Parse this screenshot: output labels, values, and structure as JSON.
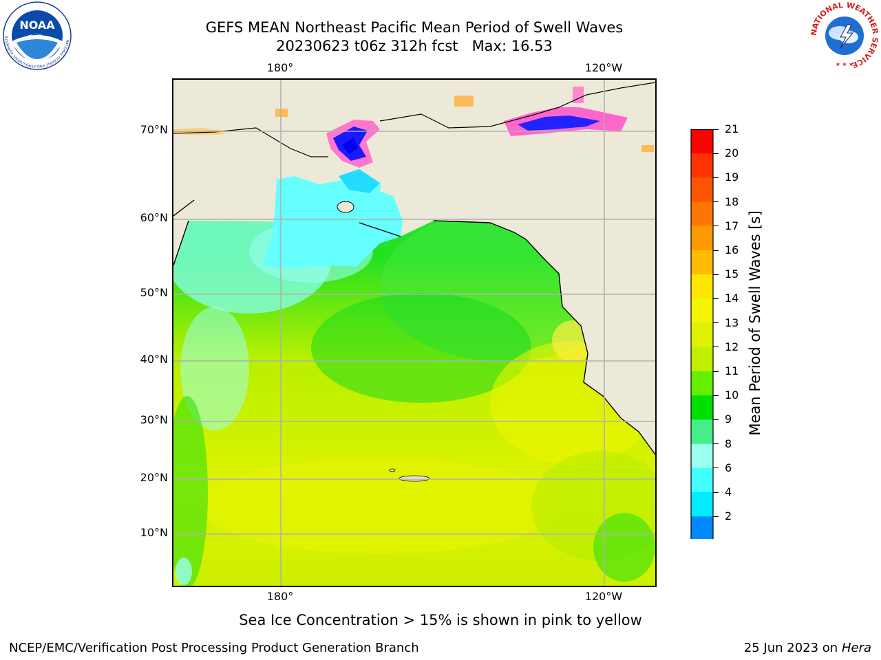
{
  "header": {
    "title_line1": "GEFS MEAN Northeast Pacific Mean Period of Swell Waves",
    "title_line2": "20230623 t06z 312h fcst   Max: 16.53"
  },
  "logos": {
    "left": {
      "icon": "noaa-logo",
      "text": "NOAA",
      "ring_text": "NATIONAL OCEANIC AND ATMOSPHERIC ADMINISTRATION · U.S. DEPARTMENT OF COMMERCE"
    },
    "right": {
      "icon": "nws-logo",
      "ring_text": "NATIONAL WEATHER SERVICE"
    }
  },
  "map": {
    "lon_labels_top": [
      "180°",
      "120°W"
    ],
    "lon_labels_bottom": [
      "180°",
      "120°W"
    ],
    "lat_labels": [
      "70°N",
      "60°N",
      "50°N",
      "40°N",
      "30°N",
      "20°N",
      "10°N"
    ],
    "colors": {
      "land": "#ede9d8",
      "gridline": "#b0b0b0",
      "coast": "#000000"
    }
  },
  "colorbar": {
    "title": "Mean Period of Swell Waves [s]",
    "labels": [
      "21",
      "20",
      "19",
      "18",
      "17",
      "16",
      "15",
      "14",
      "13",
      "12",
      "11",
      "10",
      "9",
      "8",
      "6",
      "4",
      "2"
    ],
    "colors": [
      "#ff0000",
      "#ff3300",
      "#ff5500",
      "#ff7700",
      "#ff9900",
      "#ffbb00",
      "#ffe600",
      "#f4f600",
      "#ddf200",
      "#c0f000",
      "#66ee00",
      "#00e000",
      "#44ee88",
      "#99ffee",
      "#44ffff",
      "#00ecff",
      "#0088ff",
      "#0000ff"
    ]
  },
  "footer": {
    "sea_ice_note": "Sea Ice Concentration > 15% is shown in pink to yellow",
    "credit": "NCEP/EMC/Verification Post Processing Product Generation Branch",
    "date": "25 Jun 2023 on",
    "host": "Hera"
  }
}
